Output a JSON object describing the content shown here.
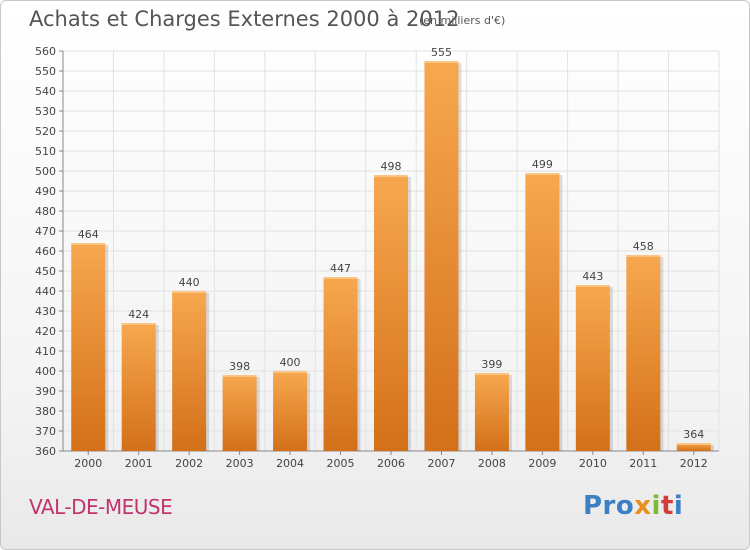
{
  "header": {
    "title": "Achats et Charges Externes 2000 à 2012",
    "subtitle": "(en milliers d'€)"
  },
  "footer": {
    "commune": "VAL-DE-MEUSE",
    "logo": [
      "Pro",
      "x",
      "i",
      "t",
      "i"
    ]
  },
  "colors": {
    "bar_top": "#f7a84f",
    "bar_bottom": "#d3701a",
    "grid": "#e2e2e2",
    "commune": "#c0356e"
  },
  "chart_data": {
    "type": "bar",
    "title": "Achats et Charges Externes 2000 à 2012",
    "subtitle": "(en milliers d'€)",
    "categories": [
      "2000",
      "2001",
      "2002",
      "2003",
      "2004",
      "2005",
      "2006",
      "2007",
      "2008",
      "2009",
      "2010",
      "2011",
      "2012"
    ],
    "values": [
      464,
      424,
      440,
      398,
      400,
      447,
      498,
      555,
      399,
      499,
      443,
      458,
      364
    ],
    "ylim": [
      360,
      560
    ],
    "ytick_step": 10,
    "grid": true,
    "data_labels": true
  }
}
